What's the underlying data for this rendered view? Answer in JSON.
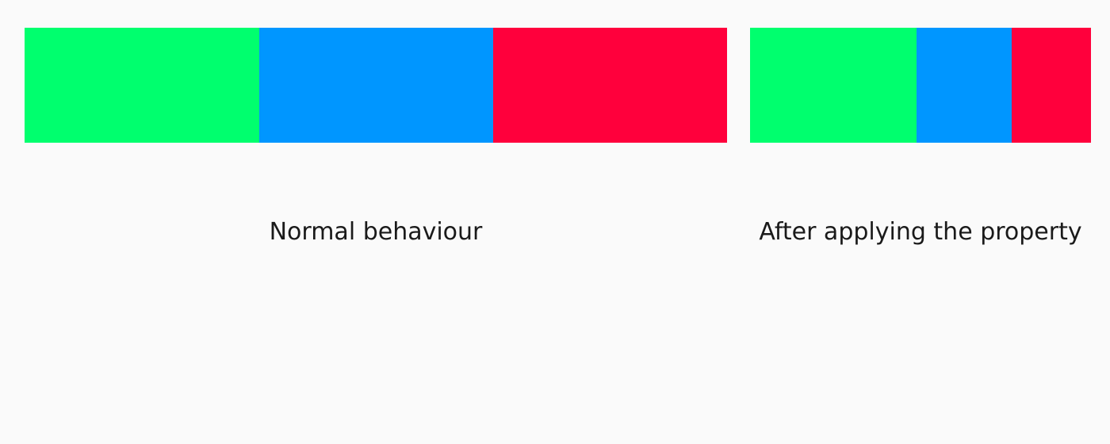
{
  "colors": {
    "background": "#fafafa",
    "green": "#00ff6e",
    "blue": "#0096ff",
    "red": "#ff003c",
    "text": "#1a1a1a"
  },
  "panels": {
    "normal": {
      "caption": "Normal behaviour",
      "blocks": [
        {
          "color": "#00ff6e"
        },
        {
          "color": "#0096ff"
        },
        {
          "color": "#ff003c"
        }
      ]
    },
    "applied": {
      "caption": "After applying the property",
      "blocks": [
        {
          "color": "#00ff6e"
        },
        {
          "color": "#0096ff"
        },
        {
          "color": "#ff003c"
        }
      ]
    }
  }
}
